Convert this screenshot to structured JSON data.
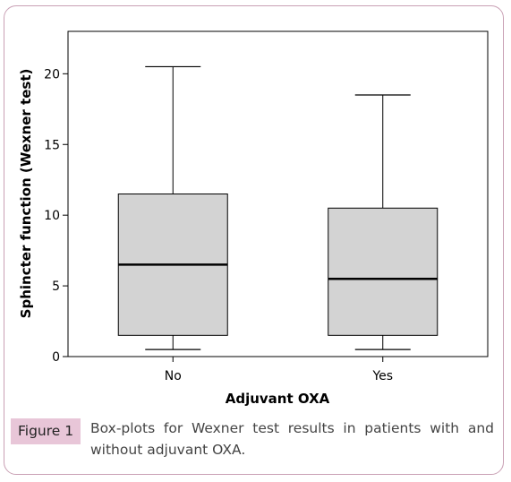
{
  "chart_data": {
    "type": "boxplot",
    "xlabel": "Adjuvant OXA",
    "ylabel": "Sphincter function (Wexner test)",
    "ylim": [
      0,
      23
    ],
    "yticks": [
      0,
      5,
      10,
      15,
      20
    ],
    "categories": [
      "No",
      "Yes"
    ],
    "boxes": [
      {
        "category": "No",
        "min": 0.5,
        "q1": 1.5,
        "median": 6.5,
        "q3": 11.5,
        "max": 20.5
      },
      {
        "category": "Yes",
        "min": 0.5,
        "q1": 1.5,
        "median": 5.5,
        "q3": 10.5,
        "max": 18.5
      }
    ],
    "box_color": "#d3d3d3",
    "grid": false
  },
  "caption": {
    "label": "Figure 1",
    "text_line1": "Box-plots for Wexner test results in patients with and",
    "text_line2": "without adjuvant OXA."
  }
}
